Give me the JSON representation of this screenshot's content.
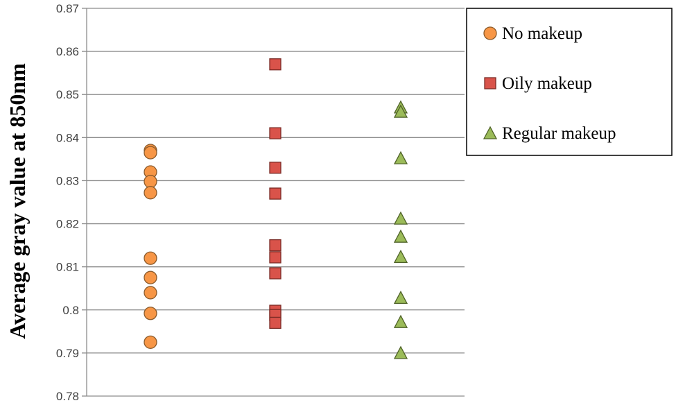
{
  "chart_data": {
    "type": "scatter",
    "ylabel": "Average gray value at 850nm",
    "ylim": [
      0.78,
      0.87
    ],
    "yticks": [
      0.78,
      0.79,
      0.8,
      0.81,
      0.82,
      0.83,
      0.84,
      0.85,
      0.86,
      0.87
    ],
    "ytick_labels": [
      "0.78",
      "0.79",
      "0.8",
      "0.81",
      "0.82",
      "0.83",
      "0.84",
      "0.85",
      "0.86",
      "0.87"
    ],
    "grid": "horizontal",
    "legend_position": "top-right",
    "series": [
      {
        "name": "No makeup",
        "marker": "circle",
        "color": "#f79646",
        "edge_color": "#8a5a2b",
        "x": 1,
        "values": [
          0.837,
          0.8365,
          0.832,
          0.8298,
          0.8272,
          0.812,
          0.8075,
          0.804,
          0.7992,
          0.7925
        ]
      },
      {
        "name": "Oily makeup",
        "marker": "square",
        "color": "#d9534a",
        "edge_color": "#7a2b25",
        "x": 2,
        "values": [
          0.857,
          0.841,
          0.833,
          0.827,
          0.815,
          0.8122,
          0.8085,
          0.7998,
          0.7988,
          0.797
        ]
      },
      {
        "name": "Regular makeup",
        "marker": "triangle",
        "color": "#9bbb59",
        "edge_color": "#4f6228",
        "x": 3,
        "values": [
          0.847,
          0.846,
          0.8352,
          0.8212,
          0.817,
          0.8123,
          0.8028,
          0.7972,
          0.79
        ]
      }
    ]
  }
}
